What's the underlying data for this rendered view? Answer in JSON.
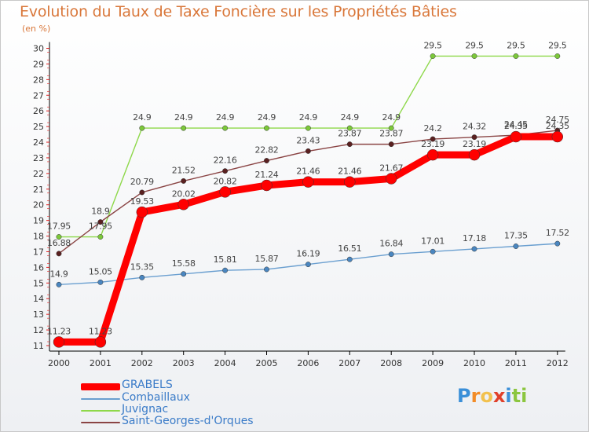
{
  "header": {
    "title": "Evolution du Taux de Taxe Foncière sur les Propriétés Bâties",
    "subtitle": "(en %)"
  },
  "chart_data": {
    "type": "line",
    "title": "Evolution du Taux de Taxe Foncière sur les Propriétés Bâties",
    "ylabel": "(en %)",
    "xlabel": "",
    "categories": [
      "2000",
      "2001",
      "2002",
      "2003",
      "2004",
      "2005",
      "2006",
      "2007",
      "2008",
      "2009",
      "2010",
      "2011",
      "2012"
    ],
    "yticks": [
      "11",
      "12",
      "13",
      "14",
      "15",
      "16",
      "17",
      "18",
      "19",
      "20",
      "21",
      "22",
      "23",
      "24",
      "25",
      "26",
      "27",
      "28",
      "29",
      "30"
    ],
    "ylim": [
      11,
      30
    ],
    "grid": false,
    "legend_position": "bottom-left",
    "series": [
      {
        "name": "GRABELS",
        "color": "#ff0000",
        "values": [
          11.23,
          11.23,
          19.53,
          20.02,
          20.82,
          21.24,
          21.46,
          21.46,
          21.67,
          23.19,
          23.19,
          24.35,
          24.35
        ],
        "labels": [
          "11.23",
          "11.23",
          "19.53",
          "20.02",
          "20.82",
          "21.24",
          "21.46",
          "21.46",
          "21.67",
          "23.19",
          "23.19",
          "24.35",
          "24.35"
        ]
      },
      {
        "name": "Combaillaux",
        "color": "#6a9fd0",
        "values": [
          14.9,
          15.05,
          15.35,
          15.58,
          15.81,
          15.87,
          16.19,
          16.51,
          16.84,
          17.01,
          17.18,
          17.35,
          17.52
        ],
        "labels": [
          "14.9",
          "15.05",
          "15.35",
          "15.58",
          "15.81",
          "15.87",
          "16.19",
          "16.51",
          "16.84",
          "17.01",
          "17.18",
          "17.35",
          "17.52"
        ]
      },
      {
        "name": "Juvignac",
        "color": "#8ed84a",
        "values": [
          17.95,
          17.95,
          24.9,
          24.9,
          24.9,
          24.9,
          24.9,
          24.9,
          24.9,
          29.5,
          29.5,
          29.5,
          29.5
        ],
        "labels": [
          "17.95",
          "17.95",
          "24.9",
          "24.9",
          "24.9",
          "24.9",
          "24.9",
          "24.9",
          "24.9",
          "29.5",
          "29.5",
          "29.5",
          "29.5"
        ]
      },
      {
        "name": "Saint-Georges-d'Orques",
        "color": "#8a4444",
        "values": [
          16.88,
          18.9,
          20.79,
          21.52,
          22.16,
          22.82,
          23.43,
          23.87,
          23.87,
          24.2,
          24.32,
          24.45,
          24.75
        ],
        "labels": [
          "16.88",
          "18.9",
          "20.79",
          "21.52",
          "22.16",
          "22.82",
          "23.43",
          "23.87",
          "23.87",
          "24.2",
          "24.32",
          "24.45",
          "24.75"
        ]
      }
    ]
  },
  "logo": {
    "letters": [
      "P",
      "r",
      "o",
      "x",
      "i",
      "t",
      "i"
    ],
    "colors": [
      "#3a8fd8",
      "#f28c28",
      "#f2c14e",
      "#e0402a",
      "#3a8fd8",
      "#8cc63f",
      "#8cc63f"
    ]
  }
}
